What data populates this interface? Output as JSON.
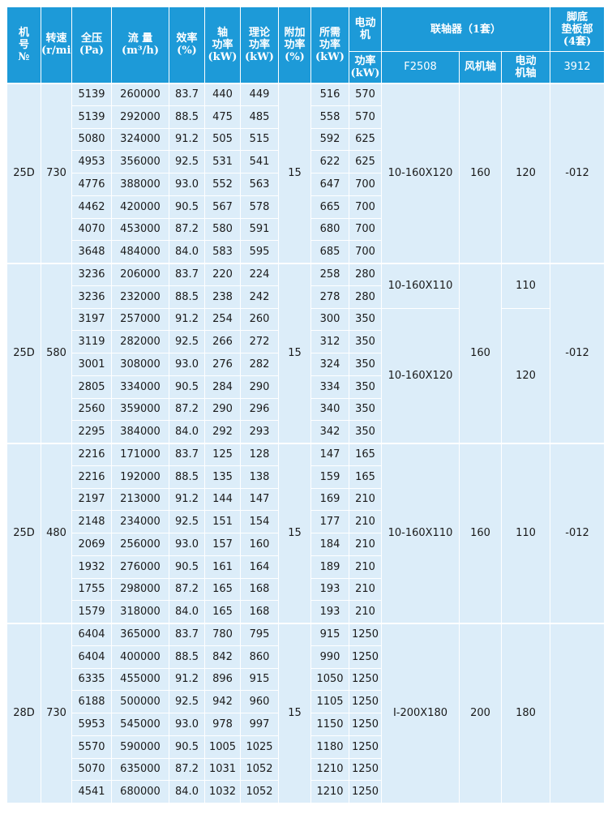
{
  "header": {
    "model": "机\n号\n№",
    "speed": "转速\n(r/min)",
    "pressure": "全压\n(Pa)",
    "flow": "流 量\n(m³/h)",
    "efficiency": "效率\n(%)",
    "shaft_power": "轴\n功率\n(kW)",
    "theory_power": "理论\n功率\n(kW)",
    "extra_power": "附加\n功率\n(%)",
    "required_power": "所需\n功率\n(kW)",
    "motor": "电动\n机",
    "motor_power": "功率\n(kW)",
    "coupling": "联轴器（1套）",
    "coupling_model": "F2508",
    "fan_shaft": "风机轴",
    "motor_shaft": "电动\n机轴",
    "base": "脚底\n垫板部\n(4套)",
    "base_model": "3912"
  },
  "groups": [
    {
      "model": "25D",
      "speed": "730",
      "extra_power": "15",
      "rows": [
        [
          "5139",
          "260000",
          "83.7",
          "440",
          "449",
          "516",
          "570"
        ],
        [
          "5139",
          "292000",
          "88.5",
          "475",
          "485",
          "558",
          "570"
        ],
        [
          "5080",
          "324000",
          "91.2",
          "505",
          "515",
          "592",
          "625"
        ],
        [
          "4953",
          "356000",
          "92.5",
          "531",
          "541",
          "622",
          "625"
        ],
        [
          "4776",
          "388000",
          "93.0",
          "552",
          "563",
          "647",
          "700"
        ],
        [
          "4462",
          "420000",
          "90.5",
          "567",
          "578",
          "665",
          "700"
        ],
        [
          "4070",
          "453000",
          "87.2",
          "580",
          "591",
          "680",
          "700"
        ],
        [
          "3648",
          "484000",
          "84.0",
          "583",
          "595",
          "685",
          "700"
        ]
      ],
      "coupling": [
        "10-160X120",
        null,
        null,
        null,
        null,
        null,
        null,
        null
      ],
      "fan_shaft": "160",
      "motor_shaft": [
        "120",
        null,
        null,
        null,
        null,
        null,
        null,
        null
      ],
      "base": "-012"
    },
    {
      "model": "25D",
      "speed": "580",
      "extra_power": "15",
      "rows": [
        [
          "3236",
          "206000",
          "83.7",
          "220",
          "224",
          "258",
          "280"
        ],
        [
          "3236",
          "232000",
          "88.5",
          "238",
          "242",
          "278",
          "280"
        ],
        [
          "3197",
          "257000",
          "91.2",
          "254",
          "260",
          "300",
          "350"
        ],
        [
          "3119",
          "282000",
          "92.5",
          "266",
          "272",
          "312",
          "350"
        ],
        [
          "3001",
          "308000",
          "93.0",
          "276",
          "282",
          "324",
          "350"
        ],
        [
          "2805",
          "334000",
          "90.5",
          "284",
          "290",
          "334",
          "350"
        ],
        [
          "2560",
          "359000",
          "87.2",
          "290",
          "296",
          "340",
          "350"
        ],
        [
          "2295",
          "384000",
          "84.0",
          "292",
          "293",
          "342",
          "350"
        ]
      ],
      "coupling": [
        "10-160X110",
        null,
        "10-160X120",
        null,
        null,
        null,
        null,
        null
      ],
      "fan_shaft": "160",
      "motor_shaft": [
        "110",
        null,
        "120",
        null,
        null,
        null,
        null,
        null
      ],
      "base": "-012"
    },
    {
      "model": "25D",
      "speed": "480",
      "extra_power": "15",
      "rows": [
        [
          "2216",
          "171000",
          "83.7",
          "125",
          "128",
          "147",
          "165"
        ],
        [
          "2216",
          "192000",
          "88.5",
          "135",
          "138",
          "159",
          "165"
        ],
        [
          "2197",
          "213000",
          "91.2",
          "144",
          "147",
          "169",
          "210"
        ],
        [
          "2148",
          "234000",
          "92.5",
          "151",
          "154",
          "177",
          "210"
        ],
        [
          "2069",
          "256000",
          "93.0",
          "157",
          "160",
          "184",
          "210"
        ],
        [
          "1932",
          "276000",
          "90.5",
          "161",
          "164",
          "189",
          "210"
        ],
        [
          "1755",
          "298000",
          "87.2",
          "165",
          "168",
          "193",
          "210"
        ],
        [
          "1579",
          "318000",
          "84.0",
          "165",
          "168",
          "193",
          "210"
        ]
      ],
      "coupling": [
        "10-160X110",
        null,
        null,
        null,
        null,
        null,
        null,
        null
      ],
      "fan_shaft": "160",
      "motor_shaft": [
        "110",
        null,
        null,
        null,
        null,
        null,
        null,
        null
      ],
      "base": "-012"
    },
    {
      "model": "28D",
      "speed": "730",
      "extra_power": "15",
      "rows": [
        [
          "6404",
          "365000",
          "83.7",
          "780",
          "795",
          "915",
          "1250"
        ],
        [
          "6404",
          "400000",
          "88.5",
          "842",
          "860",
          "990",
          "1250"
        ],
        [
          "6335",
          "455000",
          "91.2",
          "896",
          "915",
          "1050",
          "1250"
        ],
        [
          "6188",
          "500000",
          "92.5",
          "942",
          "960",
          "1105",
          "1250"
        ],
        [
          "5953",
          "545000",
          "93.0",
          "978",
          "997",
          "1150",
          "1250"
        ],
        [
          "5570",
          "590000",
          "90.5",
          "1005",
          "1025",
          "1180",
          "1250"
        ],
        [
          "5070",
          "635000",
          "87.2",
          "1031",
          "1052",
          "1210",
          "1250"
        ],
        [
          "4541",
          "680000",
          "84.0",
          "1032",
          "1052",
          "1210",
          "1250"
        ]
      ],
      "coupling": [
        "I-200X180",
        null,
        null,
        null,
        null,
        null,
        null,
        null
      ],
      "fan_shaft": "200",
      "motor_shaft": [
        "180",
        null,
        null,
        null,
        null,
        null,
        null,
        null
      ]
    }
  ]
}
